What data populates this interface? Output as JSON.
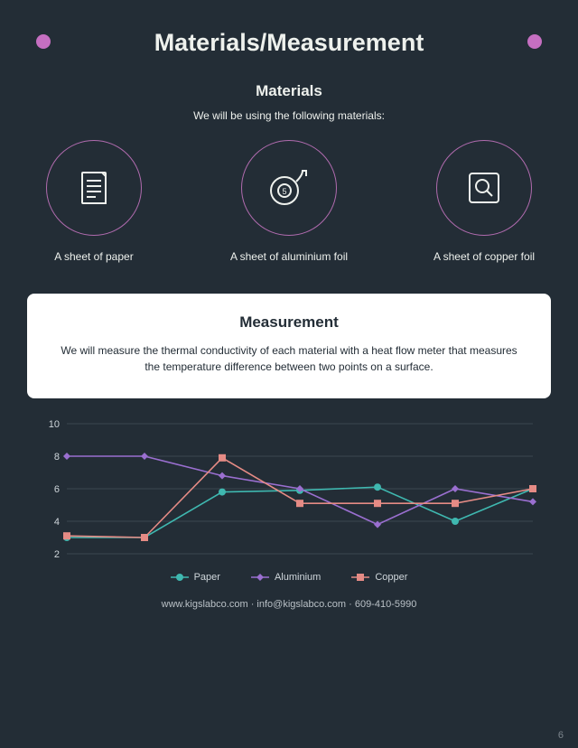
{
  "colors": {
    "background": "#232d36",
    "text": "#eef1ed",
    "accent_dot": "#c56fc1",
    "ring_border": "#b06bae",
    "icon_stroke": "#eef1ed",
    "card_bg": "#ffffff",
    "card_text": "#232d36",
    "grid": "#3b4750",
    "tick_label": "#cfd6db",
    "legend_text": "#cfd6db",
    "footer_text": "#b9c0c6"
  },
  "header": {
    "title": "Materials/Measurement"
  },
  "materials": {
    "heading": "Materials",
    "intro": "We will be using the following materials:",
    "items": [
      {
        "label": "A sheet of paper",
        "icon": "document-icon"
      },
      {
        "label": "A sheet of aluminium foil",
        "icon": "tape-icon"
      },
      {
        "label": "A sheet of copper foil",
        "icon": "magnifier-icon"
      }
    ]
  },
  "measurement": {
    "heading": "Measurement",
    "body": "We will measure the thermal conductivity of each material with a heat flow meter that measures the temperature difference between two points on a surface."
  },
  "chart": {
    "type": "line",
    "ylim": [
      2,
      10
    ],
    "yticks": [
      2,
      4,
      6,
      8,
      10
    ],
    "x_count": 7,
    "series": [
      {
        "name": "Paper",
        "color": "#3fb8b0",
        "marker": "circle",
        "values": [
          3.0,
          3.0,
          5.8,
          5.9,
          6.1,
          4.0,
          6.0
        ]
      },
      {
        "name": "Aluminium",
        "color": "#9a6fd0",
        "marker": "diamond",
        "values": [
          8.0,
          8.0,
          6.8,
          6.0,
          3.8,
          6.0,
          5.2
        ]
      },
      {
        "name": "Copper",
        "color": "#e58b85",
        "marker": "square",
        "values": [
          3.1,
          3.0,
          7.9,
          5.1,
          5.1,
          5.1,
          6.0
        ]
      }
    ],
    "line_width": 1.6,
    "marker_size": 4,
    "grid_color": "#3b4750",
    "label_fontsize": 11
  },
  "footer": {
    "website": "www.kigslabco.com",
    "email": "info@kigslabco.com",
    "phone": "609-410-5990",
    "separator": "  ·  "
  },
  "page_number": "6"
}
